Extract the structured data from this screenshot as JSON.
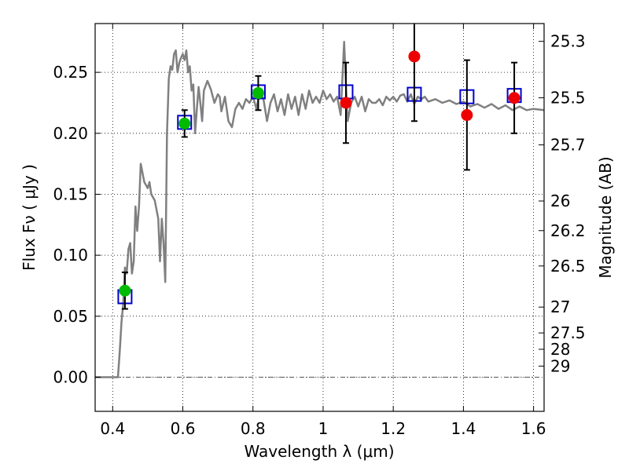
{
  "chart_data": {
    "type": "scatter",
    "xlabel": "Wavelength  λ (μm)",
    "ylabel": "Flux  Fν  ( μJy )",
    "ylabel_right": "Magnitude (AB)",
    "xlim": [
      0.35,
      1.63
    ],
    "ylim": [
      -0.028,
      0.29
    ],
    "grid": true,
    "x_ticks": [
      0.4,
      0.6,
      0.8,
      1.0,
      1.2,
      1.4,
      1.6
    ],
    "x_tick_labels": [
      "0.4",
      "0.6",
      "0.8",
      "1",
      "1.2",
      "1.4",
      "1.6"
    ],
    "y_ticks": [
      0.0,
      0.05,
      0.1,
      0.15,
      0.2,
      0.25
    ],
    "y_tick_labels": [
      "0.00",
      "0.05",
      "0.10",
      "0.15",
      "0.20",
      "0.25"
    ],
    "right_ticks": [
      {
        "label": "25.3",
        "flux": 0.2754
      },
      {
        "label": "25.5",
        "flux": 0.2291
      },
      {
        "label": "25.7",
        "flux": 0.1905
      },
      {
        "label": "26",
        "flux": 0.1445
      },
      {
        "label": "26.2",
        "flux": 0.1202
      },
      {
        "label": "26.5",
        "flux": 0.0912
      },
      {
        "label": "27",
        "flux": 0.0575
      },
      {
        "label": "27.5",
        "flux": 0.0363
      },
      {
        "label": "28",
        "flux": 0.0229
      },
      {
        "label": "29",
        "flux": 0.0091
      }
    ],
    "series": [
      {
        "name": "model SED",
        "kind": "line",
        "color": "#808080",
        "points": [
          [
            0.35,
            0.0
          ],
          [
            0.41,
            0.0
          ],
          [
            0.415,
            0.0
          ],
          [
            0.42,
            0.02
          ],
          [
            0.425,
            0.045
          ],
          [
            0.43,
            0.06
          ],
          [
            0.435,
            0.09
          ],
          [
            0.44,
            0.085
          ],
          [
            0.445,
            0.105
          ],
          [
            0.45,
            0.11
          ],
          [
            0.455,
            0.085
          ],
          [
            0.46,
            0.095
          ],
          [
            0.465,
            0.14
          ],
          [
            0.47,
            0.12
          ],
          [
            0.475,
            0.14
          ],
          [
            0.48,
            0.175
          ],
          [
            0.49,
            0.16
          ],
          [
            0.5,
            0.155
          ],
          [
            0.505,
            0.16
          ],
          [
            0.51,
            0.15
          ],
          [
            0.52,
            0.145
          ],
          [
            0.53,
            0.13
          ],
          [
            0.535,
            0.095
          ],
          [
            0.54,
            0.13
          ],
          [
            0.545,
            0.11
          ],
          [
            0.55,
            0.078
          ],
          [
            0.555,
            0.2
          ],
          [
            0.56,
            0.245
          ],
          [
            0.565,
            0.255
          ],
          [
            0.57,
            0.252
          ],
          [
            0.575,
            0.265
          ],
          [
            0.58,
            0.268
          ],
          [
            0.585,
            0.25
          ],
          [
            0.59,
            0.258
          ],
          [
            0.595,
            0.262
          ],
          [
            0.6,
            0.265
          ],
          [
            0.605,
            0.26
          ],
          [
            0.61,
            0.268
          ],
          [
            0.615,
            0.25
          ],
          [
            0.62,
            0.255
          ],
          [
            0.625,
            0.235
          ],
          [
            0.63,
            0.24
          ],
          [
            0.635,
            0.2
          ],
          [
            0.64,
            0.22
          ],
          [
            0.645,
            0.238
          ],
          [
            0.65,
            0.225
          ],
          [
            0.655,
            0.21
          ],
          [
            0.66,
            0.235
          ],
          [
            0.67,
            0.243
          ],
          [
            0.68,
            0.236
          ],
          [
            0.69,
            0.225
          ],
          [
            0.7,
            0.232
          ],
          [
            0.705,
            0.23
          ],
          [
            0.71,
            0.218
          ],
          [
            0.72,
            0.23
          ],
          [
            0.73,
            0.21
          ],
          [
            0.74,
            0.205
          ],
          [
            0.75,
            0.22
          ],
          [
            0.76,
            0.225
          ],
          [
            0.77,
            0.22
          ],
          [
            0.78,
            0.228
          ],
          [
            0.79,
            0.225
          ],
          [
            0.8,
            0.23
          ],
          [
            0.81,
            0.22
          ],
          [
            0.82,
            0.235
          ],
          [
            0.83,
            0.228
          ],
          [
            0.84,
            0.21
          ],
          [
            0.85,
            0.225
          ],
          [
            0.86,
            0.232
          ],
          [
            0.87,
            0.218
          ],
          [
            0.88,
            0.228
          ],
          [
            0.89,
            0.215
          ],
          [
            0.9,
            0.232
          ],
          [
            0.91,
            0.22
          ],
          [
            0.92,
            0.23
          ],
          [
            0.93,
            0.215
          ],
          [
            0.94,
            0.232
          ],
          [
            0.95,
            0.22
          ],
          [
            0.96,
            0.235
          ],
          [
            0.97,
            0.225
          ],
          [
            0.98,
            0.23
          ],
          [
            0.99,
            0.225
          ],
          [
            1.0,
            0.235
          ],
          [
            1.01,
            0.228
          ],
          [
            1.02,
            0.232
          ],
          [
            1.03,
            0.226
          ],
          [
            1.04,
            0.23
          ],
          [
            1.05,
            0.215
          ],
          [
            1.055,
            0.245
          ],
          [
            1.06,
            0.275
          ],
          [
            1.065,
            0.24
          ],
          [
            1.07,
            0.21
          ],
          [
            1.08,
            0.225
          ],
          [
            1.09,
            0.23
          ],
          [
            1.1,
            0.222
          ],
          [
            1.11,
            0.23
          ],
          [
            1.12,
            0.218
          ],
          [
            1.13,
            0.228
          ],
          [
            1.14,
            0.225
          ],
          [
            1.15,
            0.225
          ],
          [
            1.16,
            0.228
          ],
          [
            1.17,
            0.223
          ],
          [
            1.18,
            0.23
          ],
          [
            1.19,
            0.227
          ],
          [
            1.2,
            0.23
          ],
          [
            1.21,
            0.226
          ],
          [
            1.22,
            0.231
          ],
          [
            1.23,
            0.232
          ],
          [
            1.24,
            0.226
          ],
          [
            1.25,
            0.232
          ],
          [
            1.26,
            0.224
          ],
          [
            1.27,
            0.23
          ],
          [
            1.28,
            0.228
          ],
          [
            1.29,
            0.23
          ],
          [
            1.3,
            0.226
          ],
          [
            1.32,
            0.228
          ],
          [
            1.34,
            0.225
          ],
          [
            1.36,
            0.227
          ],
          [
            1.38,
            0.224
          ],
          [
            1.4,
            0.226
          ],
          [
            1.42,
            0.222
          ],
          [
            1.44,
            0.224
          ],
          [
            1.46,
            0.221
          ],
          [
            1.48,
            0.224
          ],
          [
            1.5,
            0.22
          ],
          [
            1.52,
            0.223
          ],
          [
            1.54,
            0.219
          ],
          [
            1.56,
            0.222
          ],
          [
            1.58,
            0.219
          ],
          [
            1.6,
            0.22
          ],
          [
            1.63,
            0.219
          ]
        ]
      },
      {
        "name": "model photometry",
        "kind": "open-square",
        "color": "#0000cc",
        "x": [
          0.435,
          0.605,
          0.815,
          1.065,
          1.26,
          1.41,
          1.545
        ],
        "y": [
          0.066,
          0.209,
          0.234,
          0.234,
          0.232,
          0.23,
          0.231
        ]
      },
      {
        "name": "observed (green)",
        "kind": "filled-circle",
        "color": "#00bb00",
        "x": [
          0.435,
          0.605,
          0.815
        ],
        "y": [
          0.071,
          0.208,
          0.233
        ],
        "err": [
          0.015,
          0.011,
          0.014
        ]
      },
      {
        "name": "observed (red)",
        "kind": "filled-circle",
        "color": "#ee0000",
        "x": [
          1.065,
          1.26,
          1.41,
          1.545
        ],
        "y": [
          0.225,
          0.263,
          0.215,
          0.229
        ],
        "err": [
          0.033,
          0.053,
          0.045,
          0.029
        ]
      }
    ]
  }
}
